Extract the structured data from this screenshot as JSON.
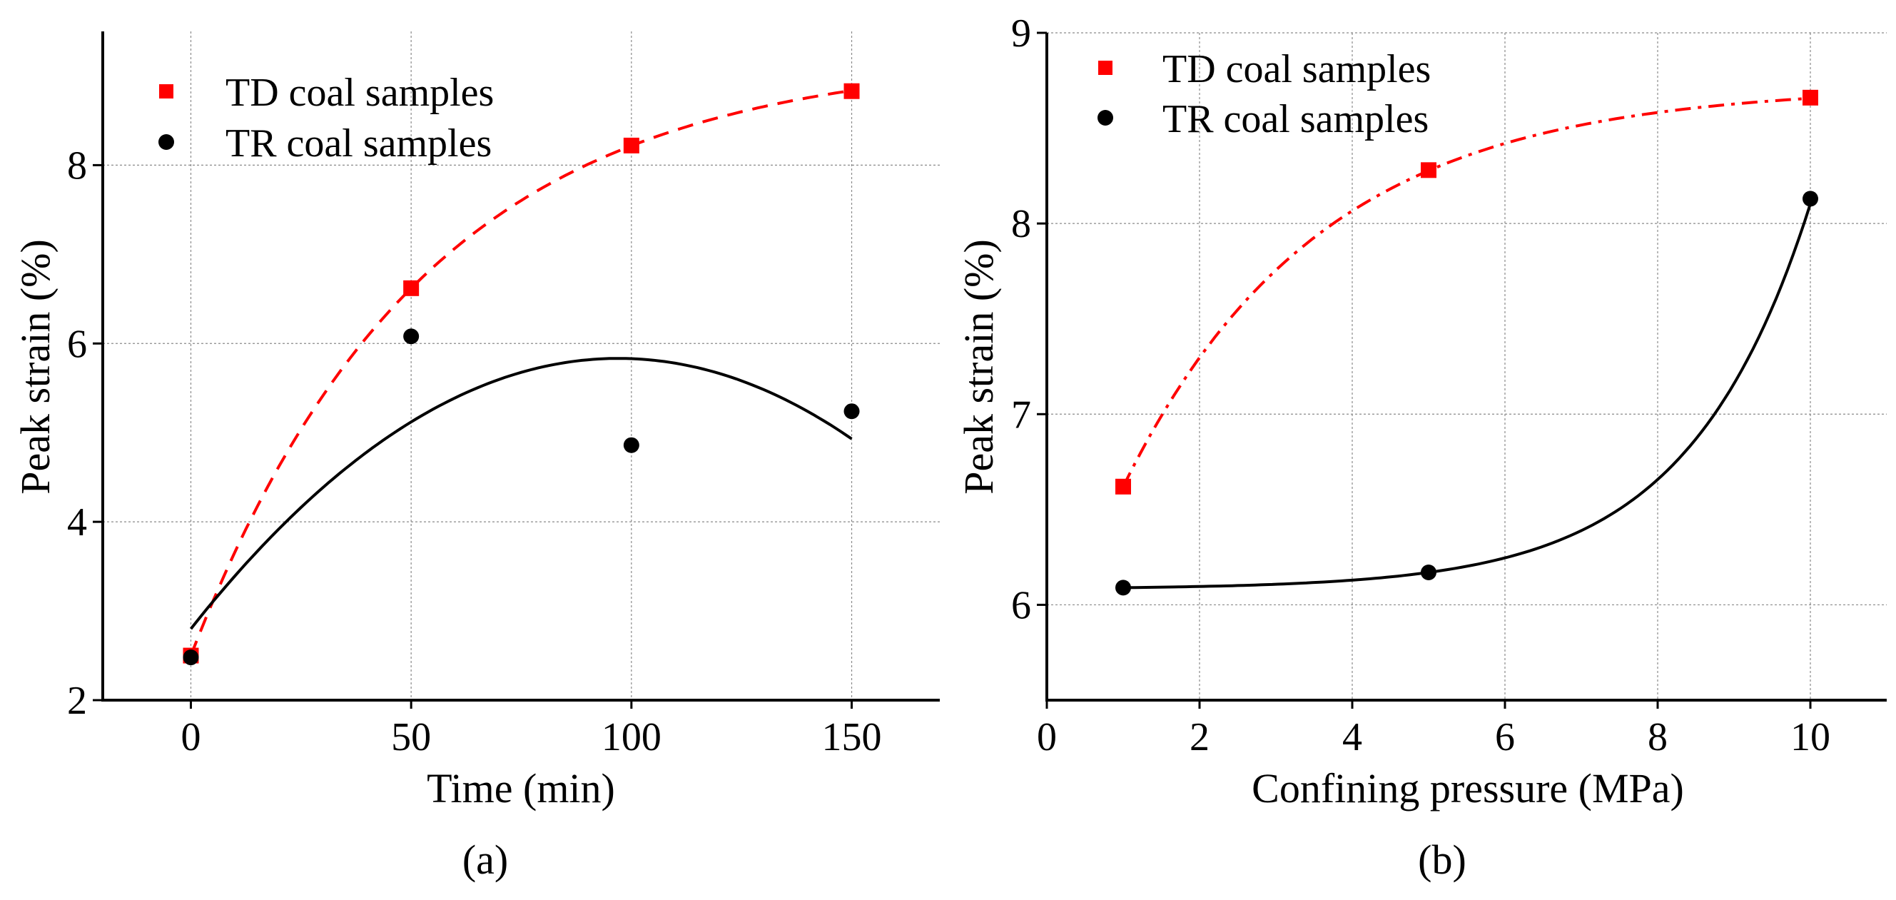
{
  "chart_data": [
    {
      "type": "scatter",
      "panel": "(a)",
      "xlabel": "Time (min)",
      "ylabel": "Peak strain (%)",
      "xlim": [
        -20,
        170
      ],
      "ylim": [
        2,
        9.5
      ],
      "xticks": [
        0,
        50,
        100,
        150
      ],
      "yticks": [
        2,
        4,
        6,
        8
      ],
      "grid": true,
      "legend_position": "top-left",
      "series": [
        {
          "name": "TD coal samples",
          "marker": "square",
          "color": "#ff0000",
          "line": "dashed",
          "fit": "exp-saturation",
          "x": [
            0,
            50,
            100,
            150
          ],
          "y": [
            2.5,
            6.62,
            8.22,
            8.83
          ]
        },
        {
          "name": "TR coal samples",
          "marker": "circle",
          "color": "#000000",
          "line": "solid",
          "fit": "quadratic",
          "x": [
            0,
            50,
            100,
            150
          ],
          "y": [
            2.48,
            6.08,
            4.86,
            5.24
          ]
        }
      ]
    },
    {
      "type": "scatter",
      "panel": "(b)",
      "xlabel": "Confining pressure (MPa)",
      "ylabel": "Peak strain (%)",
      "xlim": [
        0,
        11
      ],
      "ylim": [
        5.5,
        9
      ],
      "xticks": [
        0,
        2,
        4,
        6,
        8,
        10
      ],
      "yticks": [
        6,
        7,
        8,
        9
      ],
      "grid": true,
      "legend_position": "top-left",
      "series": [
        {
          "name": "TD coal samples",
          "marker": "square",
          "color": "#ff0000",
          "line": "dash-dot",
          "fit": "exp-saturation",
          "x": [
            1,
            5,
            10
          ],
          "y": [
            6.62,
            8.28,
            8.66
          ]
        },
        {
          "name": "TR coal samples",
          "marker": "circle",
          "color": "#000000",
          "line": "solid",
          "fit": "exp-growth",
          "x": [
            1,
            5,
            10
          ],
          "y": [
            6.09,
            6.17,
            8.13
          ]
        }
      ]
    }
  ]
}
